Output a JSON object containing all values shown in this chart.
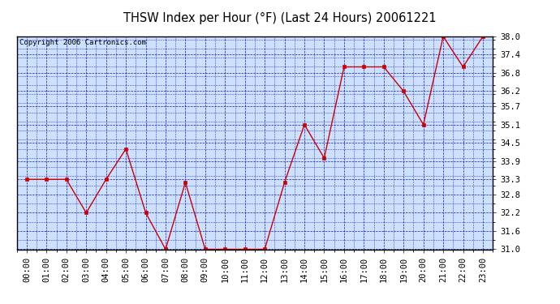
{
  "title": "THSW Index per Hour (°F) (Last 24 Hours) 20061221",
  "copyright": "Copyright 2006 Cartronics.com",
  "x_labels": [
    "00:00",
    "01:00",
    "02:00",
    "03:00",
    "04:00",
    "05:00",
    "06:00",
    "07:00",
    "08:00",
    "09:00",
    "10:00",
    "11:00",
    "12:00",
    "13:00",
    "14:00",
    "15:00",
    "16:00",
    "17:00",
    "18:00",
    "19:00",
    "20:00",
    "21:00",
    "22:00",
    "23:00"
  ],
  "y_values": [
    33.3,
    33.3,
    33.3,
    32.2,
    33.3,
    34.3,
    32.2,
    31.0,
    33.2,
    31.0,
    31.0,
    31.0,
    31.0,
    33.2,
    35.1,
    34.0,
    37.0,
    37.0,
    37.0,
    36.2,
    35.1,
    38.0,
    37.0,
    38.0
  ],
  "y_min": 31.0,
  "y_max": 38.0,
  "y_ticks": [
    31.0,
    31.6,
    32.2,
    32.8,
    33.3,
    33.9,
    34.5,
    35.1,
    35.7,
    36.2,
    36.8,
    37.4,
    38.0
  ],
  "line_color": "#cc0000",
  "marker_color": "#cc0000",
  "bg_color": "#ffffff",
  "plot_bg_color": "#cce0ff",
  "grid_color": "#0000bb",
  "title_color": "#000000",
  "border_color": "#000000",
  "title_fontsize": 10.5,
  "copyright_fontsize": 6.5,
  "tick_fontsize": 7.5
}
